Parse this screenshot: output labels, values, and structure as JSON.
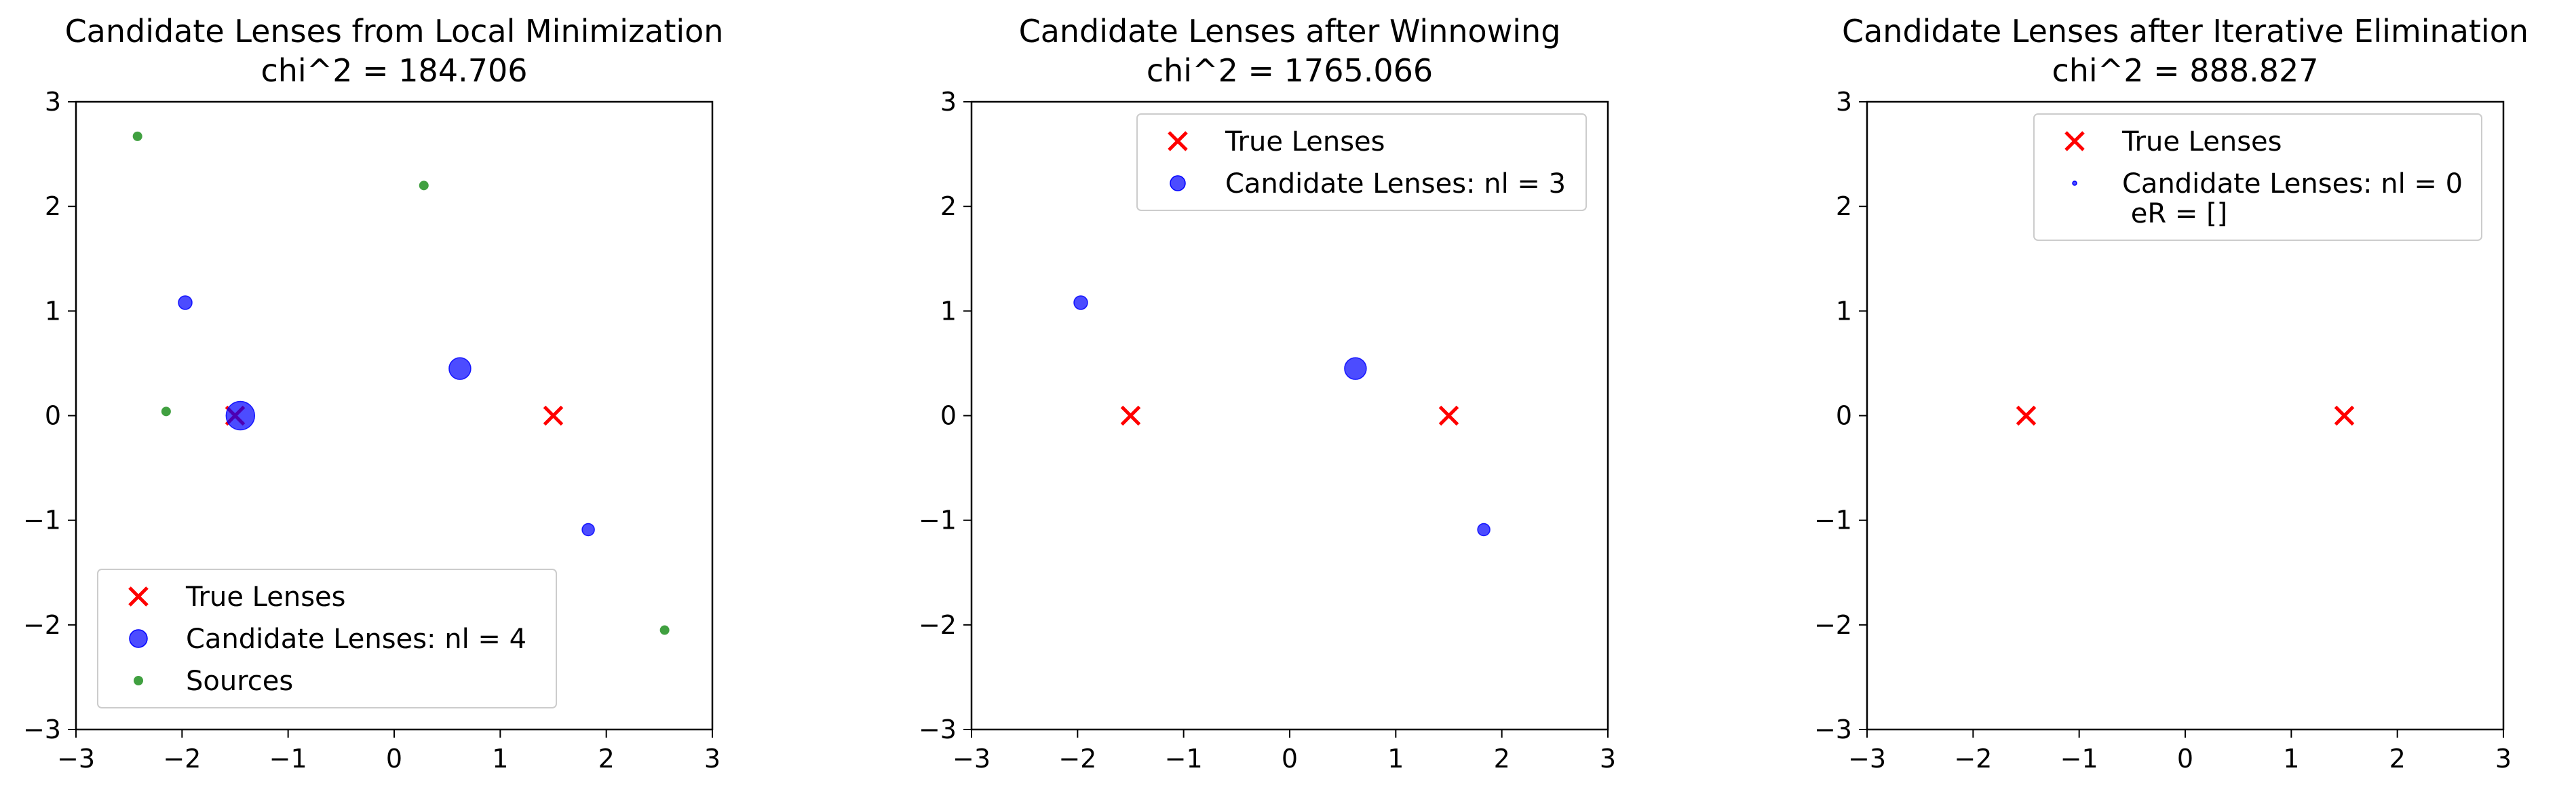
{
  "chart_data": [
    {
      "type": "scatter",
      "title": "Candidate Lenses from Local Minimization",
      "subtitle": "chi^2 = 184.706",
      "xlim": [
        -3,
        3
      ],
      "ylim": [
        -3,
        3
      ],
      "xticks": [
        -3,
        -2,
        -1,
        0,
        1,
        2,
        3
      ],
      "yticks": [
        -3,
        -2,
        -1,
        0,
        1,
        2,
        3
      ],
      "legend_position": "lower-left",
      "series": [
        {
          "name": "True Lenses",
          "marker": "x",
          "color": "#ff0000",
          "points": [
            {
              "x": -1.5,
              "y": 0.0
            },
            {
              "x": 1.5,
              "y": 0.0
            }
          ]
        },
        {
          "name": "Candidate Lenses: nl = 4",
          "marker": "circle",
          "color": "#0000ff",
          "points": [
            {
              "x": -1.97,
              "y": 1.08,
              "size": 1.0
            },
            {
              "x": -1.45,
              "y": 0.0,
              "size": 2.1
            },
            {
              "x": 0.62,
              "y": 0.45,
              "size": 1.6
            },
            {
              "x": 1.83,
              "y": -1.09,
              "size": 0.9
            }
          ]
        },
        {
          "name": "Sources",
          "marker": "circle",
          "color": "#008000",
          "points": [
            {
              "x": -2.42,
              "y": 2.67
            },
            {
              "x": 0.28,
              "y": 2.2
            },
            {
              "x": -2.15,
              "y": 0.04
            },
            {
              "x": 2.55,
              "y": -2.05
            }
          ]
        }
      ]
    },
    {
      "type": "scatter",
      "title": "Candidate Lenses after Winnowing",
      "subtitle": "chi^2 = 1765.066",
      "xlim": [
        -3,
        3
      ],
      "ylim": [
        -3,
        3
      ],
      "xticks": [
        -3,
        -2,
        -1,
        0,
        1,
        2,
        3
      ],
      "yticks": [
        -3,
        -2,
        -1,
        0,
        1,
        2,
        3
      ],
      "legend_position": "upper-right",
      "series": [
        {
          "name": "True Lenses",
          "marker": "x",
          "color": "#ff0000",
          "points": [
            {
              "x": -1.5,
              "y": 0.0
            },
            {
              "x": 1.5,
              "y": 0.0
            }
          ]
        },
        {
          "name": "Candidate Lenses: nl = 3",
          "marker": "circle",
          "color": "#0000ff",
          "points": [
            {
              "x": -1.97,
              "y": 1.08,
              "size": 1.0
            },
            {
              "x": 0.62,
              "y": 0.45,
              "size": 1.6
            },
            {
              "x": 1.83,
              "y": -1.09,
              "size": 0.9
            }
          ]
        }
      ]
    },
    {
      "type": "scatter",
      "title": "Candidate Lenses after Iterative Elimination",
      "subtitle": "chi^2 = 888.827",
      "xlim": [
        -3,
        3
      ],
      "ylim": [
        -3,
        3
      ],
      "xticks": [
        -3,
        -2,
        -1,
        0,
        1,
        2,
        3
      ],
      "yticks": [
        -3,
        -2,
        -1,
        0,
        1,
        2,
        3
      ],
      "legend_position": "upper-right",
      "series": [
        {
          "name": "True Lenses",
          "marker": "x",
          "color": "#ff0000",
          "points": [
            {
              "x": -1.5,
              "y": 0.0
            },
            {
              "x": 1.5,
              "y": 0.0
            }
          ]
        },
        {
          "name": "Candidate Lenses: nl = 0\n eR = []",
          "marker": "circle",
          "color": "#0000ff",
          "points": []
        }
      ]
    }
  ]
}
